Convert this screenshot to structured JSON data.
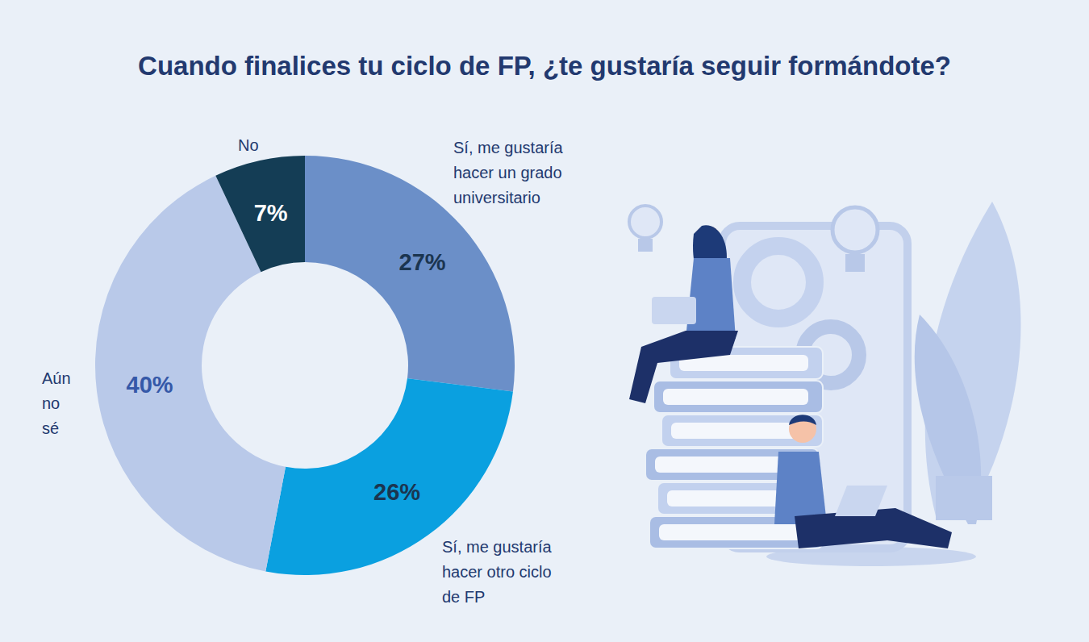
{
  "chart_data": {
    "type": "donut",
    "title": "Cuando finalices tu ciclo de FP, ¿te gustaría seguir formándote?",
    "categories": [
      "Sí, me gustaría hacer un grado universitario",
      "Sí, me gustaría hacer otro ciclo de FP",
      "Aún no sé",
      "No"
    ],
    "values": [
      27,
      26,
      40,
      7
    ],
    "value_labels": [
      "27%",
      "26%",
      "40%",
      "7%"
    ],
    "colors": [
      "#6b8fc8",
      "#0aa0e0",
      "#b9c9e9",
      "#143d55"
    ],
    "data_labels": true
  }
}
